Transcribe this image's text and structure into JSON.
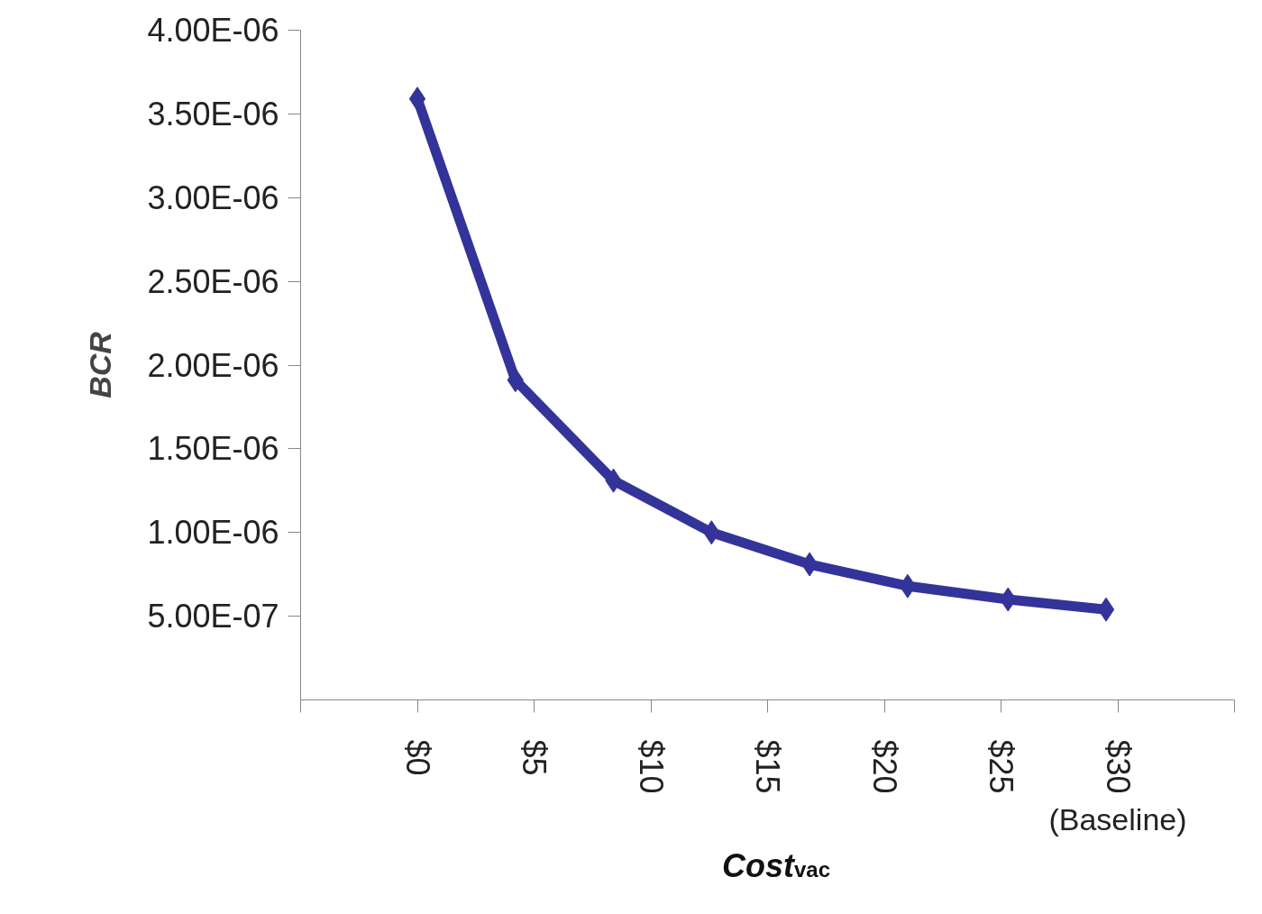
{
  "chart_data": {
    "type": "line",
    "xlabel": "Cost$_{vac}$",
    "ylabel": "BCR",
    "x": [
      0,
      4.2,
      8.4,
      12.6,
      16.8,
      21.0,
      25.3,
      29.5
    ],
    "series": [
      {
        "color": "#333399",
        "values": [
          3.59e-06,
          1.91e-06,
          1.31e-06,
          1e-06,
          8.1e-07,
          6.8e-07,
          6e-07,
          5.4e-07
        ]
      }
    ],
    "xlim": [
      -5,
      35
    ],
    "xticks": [
      {
        "value": -5,
        "label": null
      },
      {
        "value": 0,
        "label": "$0"
      },
      {
        "value": 5,
        "label": "$5"
      },
      {
        "value": 10,
        "label": "$10"
      },
      {
        "value": 15,
        "label": "$15"
      },
      {
        "value": 20,
        "label": "$20"
      },
      {
        "value": 25,
        "label": "$25"
      },
      {
        "value": 30,
        "label": "$30"
      },
      {
        "value": 35,
        "label": null
      }
    ],
    "ylim": [
      0,
      4e-06
    ],
    "yticks": [
      {
        "value": 5e-07,
        "label": "5.00E-07"
      },
      {
        "value": 1e-06,
        "label": "1.00E-06"
      },
      {
        "value": 1.5e-06,
        "label": "1.50E-06"
      },
      {
        "value": 2e-06,
        "label": "2.00E-06"
      },
      {
        "value": 2.5e-06,
        "label": "2.50E-06"
      },
      {
        "value": 3e-06,
        "label": "3.00E-06"
      },
      {
        "value": 3.5e-06,
        "label": "3.50E-06"
      },
      {
        "value": 4e-06,
        "label": "4.00E-06"
      }
    ],
    "annotations": [
      "(Baseline)"
    ],
    "marker": "diamond",
    "grid": false
  }
}
